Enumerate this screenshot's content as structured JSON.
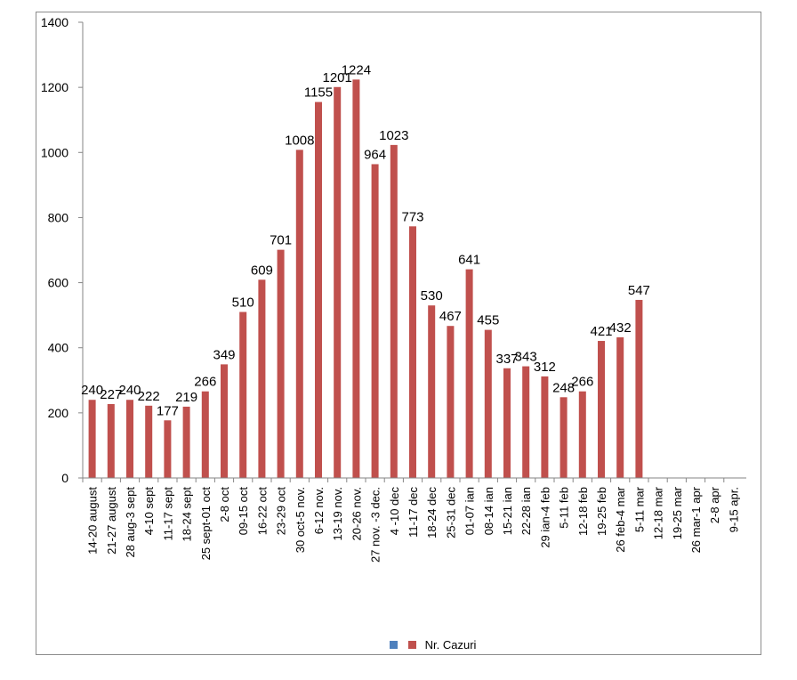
{
  "chart_data": {
    "type": "bar",
    "title": "",
    "xlabel": "",
    "ylabel": "",
    "ylim": [
      0,
      1400
    ],
    "yticks": [
      0,
      200,
      400,
      600,
      800,
      1000,
      1200,
      1400
    ],
    "grid": false,
    "legend_position": "bottom",
    "categories": [
      "14-20 august",
      "21-27 august",
      "28 aug-3 sept",
      "4-10 sept",
      "11-17 sept",
      "18-24 sept",
      "25 sept-01 oct",
      "2-8 oct",
      "09-15 oct",
      "16-22 oct",
      "23-29 oct",
      "30 oct-5 nov.",
      "6-12 nov.",
      "13-19 nov.",
      "20-26 nov.",
      "27 nov. -3 dec.",
      "4 -10 dec",
      "11-17 dec",
      "18-24 dec",
      "25-31 dec",
      "01-07 ian",
      "08-14 ian",
      "15-21 ian",
      "22-28 ian",
      "29 ian-4 feb",
      "5-11 feb",
      "12-18 feb",
      "19-25 feb",
      "26 feb-4 mar",
      "5-11 mar",
      "12-18 mar",
      "19-25 mar",
      "26 mar-1 apr",
      "2-8 apr",
      "9-15 apr."
    ],
    "series": [
      {
        "name": "Nr. Cazuri",
        "color": "#C0504D",
        "values": [
          240,
          227,
          240,
          222,
          177,
          219,
          266,
          349,
          510,
          609,
          701,
          1008,
          1155,
          1201,
          1224,
          964,
          1023,
          773,
          530,
          467,
          641,
          455,
          337,
          343,
          312,
          248,
          266,
          421,
          432,
          547,
          null,
          null,
          null,
          null,
          null
        ]
      }
    ],
    "legend": [
      {
        "label": "",
        "color": "#4F81BD"
      },
      {
        "label": "Nr. Cazuri",
        "color": "#C0504D"
      }
    ]
  }
}
